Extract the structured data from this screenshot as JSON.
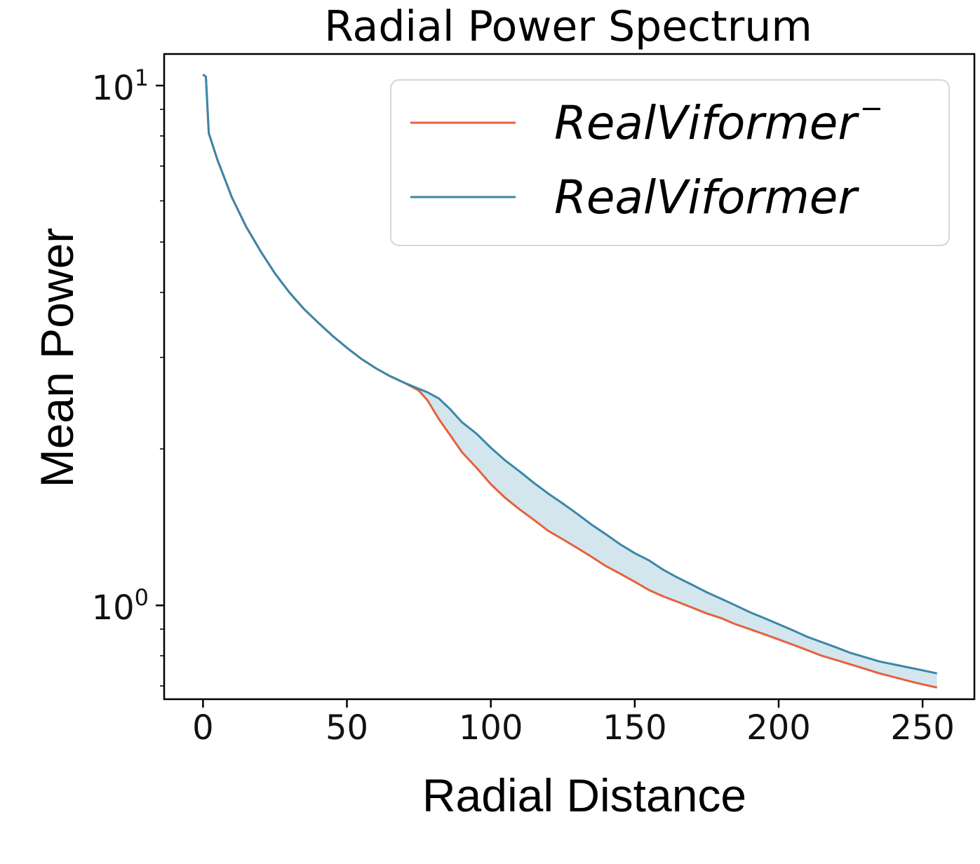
{
  "chart_data": {
    "type": "line",
    "title": "Radial Power Spectrum",
    "xlabel": "Radial Distance",
    "ylabel": "Mean Power",
    "xlim": [
      -13.5,
      268
    ],
    "ylim": [
      0.66,
      11.5
    ],
    "yscale": "log",
    "x_ticks": [
      "0",
      "50",
      "100",
      "150",
      "200",
      "250"
    ],
    "y_ticks": [
      {
        "base": "10",
        "exp": "1",
        "value": 10
      },
      {
        "base": "10",
        "exp": "0",
        "value": 1
      }
    ],
    "grid": false,
    "legend_position": "top-right",
    "fill_between": {
      "color": "#d3e6ee"
    },
    "series": [
      {
        "name": "RealViformer",
        "name_suffix": "−",
        "color": "#e8603c",
        "x": [
          0,
          1,
          2,
          5,
          10,
          15,
          20,
          25,
          30,
          35,
          40,
          45,
          50,
          55,
          60,
          65,
          70,
          75,
          78,
          82,
          86,
          90,
          95,
          100,
          105,
          110,
          115,
          120,
          125,
          130,
          135,
          140,
          145,
          150,
          155,
          160,
          165,
          170,
          175,
          180,
          185,
          190,
          195,
          200,
          205,
          210,
          215,
          220,
          225,
          230,
          235,
          240,
          245,
          250,
          255
        ],
        "y": [
          10.5,
          10.4,
          8.1,
          7.2,
          6.1,
          5.35,
          4.8,
          4.35,
          4.0,
          3.72,
          3.5,
          3.3,
          3.13,
          2.98,
          2.86,
          2.76,
          2.68,
          2.59,
          2.48,
          2.28,
          2.12,
          1.97,
          1.84,
          1.71,
          1.61,
          1.53,
          1.46,
          1.39,
          1.34,
          1.29,
          1.24,
          1.19,
          1.15,
          1.11,
          1.07,
          1.04,
          1.015,
          0.99,
          0.965,
          0.945,
          0.92,
          0.9,
          0.88,
          0.86,
          0.84,
          0.82,
          0.8,
          0.785,
          0.77,
          0.755,
          0.74,
          0.728,
          0.716,
          0.705,
          0.695
        ]
      },
      {
        "name": "RealViformer",
        "name_suffix": "",
        "color": "#3a87a8",
        "x": [
          0,
          1,
          2,
          5,
          10,
          15,
          20,
          25,
          30,
          35,
          40,
          45,
          50,
          55,
          60,
          65,
          70,
          75,
          78,
          82,
          86,
          90,
          95,
          100,
          105,
          110,
          115,
          120,
          125,
          130,
          135,
          140,
          145,
          150,
          155,
          160,
          165,
          170,
          175,
          180,
          185,
          190,
          195,
          200,
          205,
          210,
          215,
          220,
          225,
          230,
          235,
          240,
          245,
          250,
          255
        ],
        "y": [
          10.5,
          10.4,
          8.1,
          7.2,
          6.1,
          5.35,
          4.8,
          4.35,
          4.0,
          3.72,
          3.5,
          3.3,
          3.13,
          2.98,
          2.86,
          2.76,
          2.68,
          2.61,
          2.57,
          2.5,
          2.38,
          2.25,
          2.14,
          2.01,
          1.9,
          1.81,
          1.72,
          1.64,
          1.57,
          1.5,
          1.43,
          1.37,
          1.31,
          1.26,
          1.22,
          1.17,
          1.13,
          1.095,
          1.06,
          1.03,
          1.0,
          0.97,
          0.945,
          0.92,
          0.895,
          0.87,
          0.85,
          0.83,
          0.81,
          0.795,
          0.78,
          0.77,
          0.76,
          0.75,
          0.74
        ]
      }
    ]
  }
}
